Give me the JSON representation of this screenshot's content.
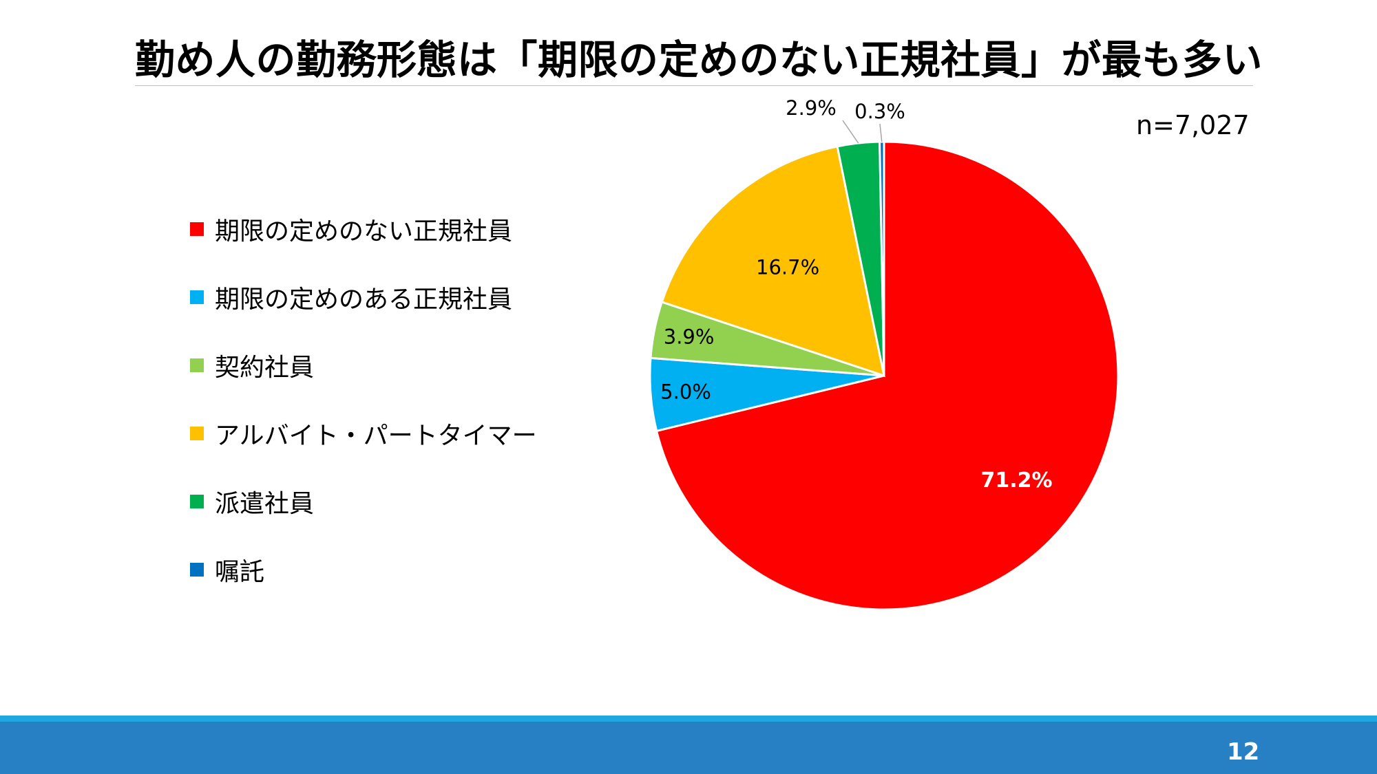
{
  "slide": {
    "title": "勤め人の勤務形態は「期限の定めのない正規社員」が最も多い",
    "sample_size": "n=7,027",
    "page_number": "12"
  },
  "chart_data": {
    "type": "pie",
    "categories": [
      "期限の定めのない正規社員",
      "期限の定めのある正規社員",
      "契約社員",
      "アルバイト・パートタイマー",
      "派遣社員",
      "嘱託"
    ],
    "values": [
      71.2,
      5.0,
      3.9,
      16.7,
      2.9,
      0.3
    ],
    "value_labels": [
      "71.2%",
      "5.0%",
      "3.9%",
      "16.7%",
      "2.9%",
      "0.3%"
    ],
    "colors": [
      "#ff0000",
      "#00b0f0",
      "#92d050",
      "#ffc000",
      "#00b050",
      "#0070c0"
    ],
    "legend_position": "left",
    "start": "top, clockwise"
  }
}
